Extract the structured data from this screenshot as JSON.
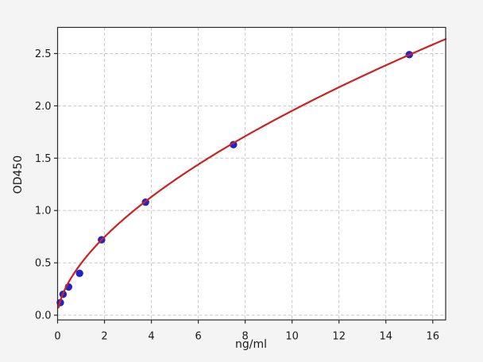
{
  "figure": {
    "background_color": "#f4f4f4",
    "plot_background_color": "#ffffff",
    "grid_color": "#c8c8c8",
    "spine_color": "#2a2a2a",
    "text_color": "#1a1a1a"
  },
  "chart_data": {
    "type": "scatter",
    "title": "",
    "xlabel": "ng/ml",
    "ylabel": "OD450",
    "xlim": [
      0,
      16.55
    ],
    "ylim": [
      -0.0455,
      2.75
    ],
    "grid": true,
    "legend": null,
    "x_ticks": [
      {
        "value": 0,
        "label": "0"
      },
      {
        "value": 2,
        "label": "2"
      },
      {
        "value": 4,
        "label": "4"
      },
      {
        "value": 6,
        "label": "6"
      },
      {
        "value": 8,
        "label": "8"
      },
      {
        "value": 10,
        "label": "10"
      },
      {
        "value": 12,
        "label": "12"
      },
      {
        "value": 14,
        "label": "14"
      },
      {
        "value": 16,
        "label": "16"
      }
    ],
    "y_ticks": [
      {
        "value": 0,
        "label": "0.0"
      },
      {
        "value": 0.5,
        "label": "0.5"
      },
      {
        "value": 1,
        "label": "1.0"
      },
      {
        "value": 1.5,
        "label": "1.5"
      },
      {
        "value": 2,
        "label": "2.0"
      },
      {
        "value": 2.5,
        "label": "2.5"
      }
    ],
    "series": [
      {
        "name": "standard-points",
        "type": "scatter",
        "color": "#2222cc",
        "marker": "circle",
        "marker_radius": 4.7,
        "x": [
          0.117,
          0.234,
          0.469,
          0.938,
          1.875,
          3.75,
          7.5,
          15
        ],
        "y": [
          0.12,
          0.2,
          0.27,
          0.4,
          0.72,
          1.08,
          1.63,
          2.49
        ]
      },
      {
        "name": "fit-curve",
        "type": "line",
        "color": "#cc2222",
        "line_width": 2.2,
        "model": "power",
        "a": 0.494,
        "b": 0.597,
        "x_start": 0.04,
        "x_end": 16.55
      }
    ]
  }
}
